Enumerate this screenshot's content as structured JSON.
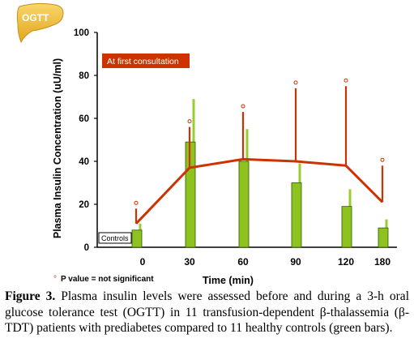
{
  "chart_data": {
    "type": "bar+line",
    "badge": "OGTT",
    "ylabel": "Plasma Insulin Concentration (uU/ml)",
    "xlabel": "Time (min)",
    "ylim": [
      0,
      100
    ],
    "yticks": [
      "0",
      "20",
      "40",
      "60",
      "80",
      "100"
    ],
    "categories": [
      "0",
      "30",
      "60",
      "90",
      "120",
      "180"
    ],
    "legend_line": "At first consultation",
    "legend_bar": "Controls",
    "footnote_marker": "°",
    "footnote_text": "P value = not significant",
    "series": [
      {
        "kind": "bar",
        "name": "Controls",
        "values": [
          8,
          49,
          40,
          30,
          19,
          9
        ],
        "error_upper": [
          11,
          69,
          55,
          39,
          27,
          13
        ],
        "color": "#8dc21f",
        "edge": "#2d5a00",
        "err_color": "#9acd32"
      },
      {
        "kind": "line",
        "name": "At first consultation",
        "values": [
          11,
          37,
          41,
          40,
          38,
          21
        ],
        "error_upper": [
          18,
          56,
          63,
          74,
          75,
          38
        ],
        "color": "#cc3300"
      }
    ]
  },
  "caption": {
    "label": "Figure 3.",
    "text": " Plasma insulin levels were assessed before and during a 3-h oral glucose tolerance test (OGTT) in 11 transfusion-dependent β-thalassemia (β-TDT) patients with prediabetes compared to 11 healthy controls (green bars)."
  }
}
